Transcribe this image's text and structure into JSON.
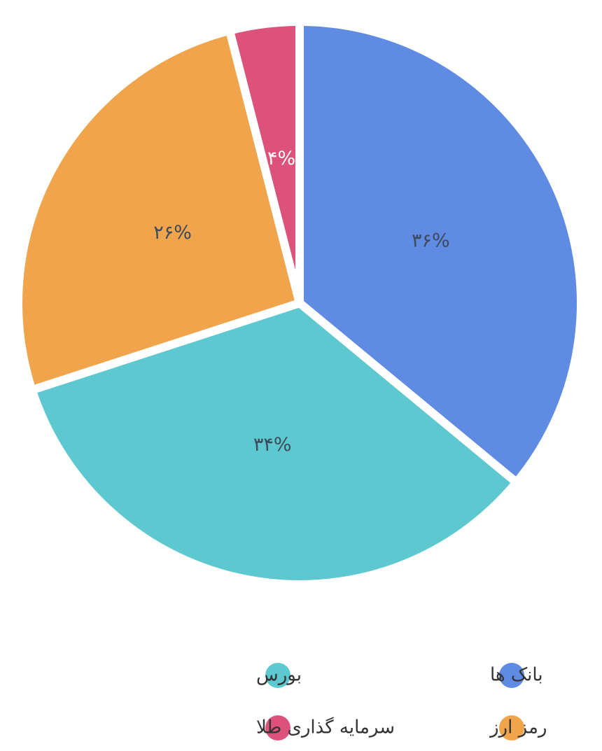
{
  "chart_data": {
    "type": "pie",
    "categories": [
      "بانک ها",
      "بورس",
      "رمز ارز",
      "سرمایه گذاری طلا"
    ],
    "values": [
      36,
      34,
      26,
      4
    ],
    "value_labels": [
      "۳۶%",
      "۳۴%",
      "۲۶%",
      "۴%"
    ],
    "colors": [
      "#5f8be3",
      "#5ec8d0",
      "#f0a44b",
      "#dc527b"
    ]
  }
}
